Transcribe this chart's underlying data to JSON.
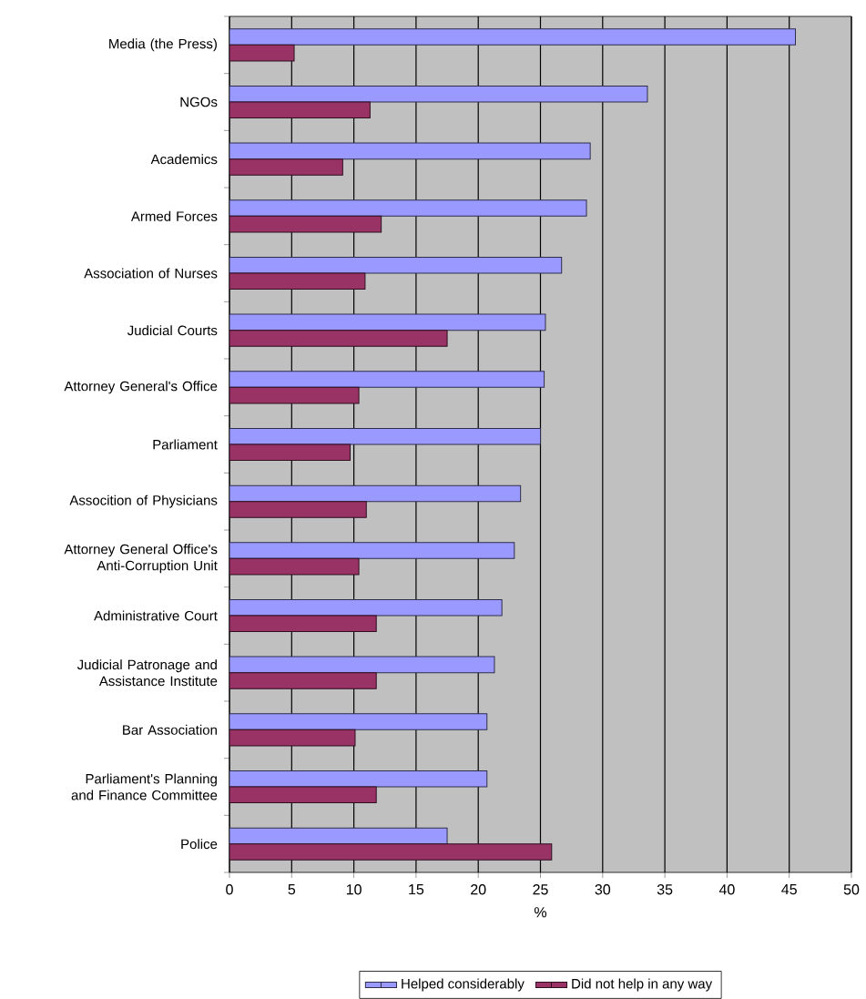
{
  "chart_data": {
    "type": "bar",
    "orientation": "horizontal",
    "xlabel": "%",
    "categories": [
      "Media (the Press)",
      "NGOs",
      "Academics",
      "Armed Forces",
      "Association of Nurses",
      "Judicial Courts",
      "Attorney General's Office",
      "Parliament",
      "Assocition of Physicians",
      "Attorney General Office's Anti-Corruption Unit",
      "Administrative Court",
      "Judicial Patronage and Assistance Institute",
      "Bar Association",
      "Parliament's Planning and Finance Committee",
      "Police"
    ],
    "series": [
      {
        "name": "Helped considerably",
        "color": "#9999ff",
        "values": [
          45.5,
          33.6,
          29.0,
          28.7,
          26.7,
          25.4,
          25.3,
          25.0,
          23.4,
          22.9,
          21.9,
          21.3,
          20.7,
          20.7,
          17.5
        ]
      },
      {
        "name": "Did not help in any way",
        "color": "#993366",
        "values": [
          5.2,
          11.3,
          9.1,
          12.2,
          10.9,
          17.5,
          10.4,
          9.7,
          11.0,
          10.4,
          11.8,
          11.8,
          10.1,
          11.8,
          25.9
        ]
      }
    ],
    "xlim": [
      0,
      50
    ],
    "xticks": [
      0,
      5,
      10,
      15,
      20,
      25,
      30,
      35,
      40,
      45,
      50
    ],
    "grid": "x",
    "legend": "bottom"
  }
}
